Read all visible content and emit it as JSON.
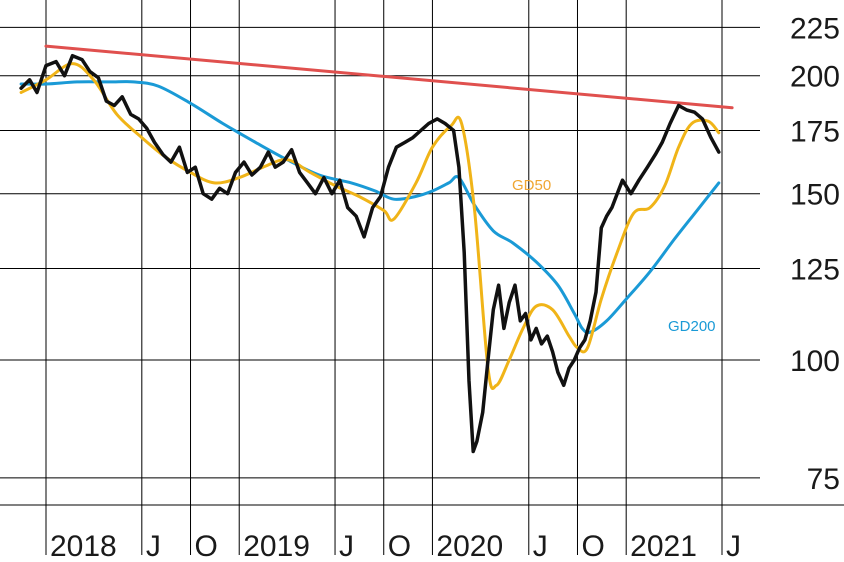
{
  "chart_data": {
    "type": "line",
    "title": "",
    "xlabel": "",
    "ylabel": "",
    "scale": "log",
    "ylim": [
      73,
      228
    ],
    "xlim": [
      "2018-01-01",
      "2021-07-31"
    ],
    "grid": true,
    "y_ticks": [
      75,
      100,
      125,
      150,
      175,
      200,
      225
    ],
    "x_ticks": [
      {
        "label": "2018",
        "date": "2018-01-01"
      },
      {
        "label": "J",
        "date": "2018-07-01"
      },
      {
        "label": "O",
        "date": "2018-10-01"
      },
      {
        "label": "2019",
        "date": "2019-01-01"
      },
      {
        "label": "J",
        "date": "2019-07-01"
      },
      {
        "label": "O",
        "date": "2019-10-01"
      },
      {
        "label": "2020",
        "date": "2020-01-01"
      },
      {
        "label": "J",
        "date": "2020-07-01"
      },
      {
        "label": "O",
        "date": "2020-10-01"
      },
      {
        "label": "2021",
        "date": "2021-01-01"
      },
      {
        "label": "J",
        "date": "2021-07-01"
      }
    ],
    "series": [
      {
        "name": "",
        "role": "price",
        "color": "#111111",
        "x": [
          "2017-11-15",
          "2017-12-01",
          "2017-12-15",
          "2018-01-01",
          "2018-01-20",
          "2018-02-05",
          "2018-02-20",
          "2018-03-10",
          "2018-03-25",
          "2018-04-10",
          "2018-04-25",
          "2018-05-10",
          "2018-05-25",
          "2018-06-10",
          "2018-06-25",
          "2018-07-10",
          "2018-07-25",
          "2018-08-10",
          "2018-08-25",
          "2018-09-10",
          "2018-09-25",
          "2018-10-10",
          "2018-10-25",
          "2018-11-10",
          "2018-11-25",
          "2018-12-10",
          "2018-12-25",
          "2019-01-10",
          "2019-01-25",
          "2019-02-10",
          "2019-02-25",
          "2019-03-10",
          "2019-03-25",
          "2019-04-10",
          "2019-04-25",
          "2019-05-10",
          "2019-05-25",
          "2019-06-10",
          "2019-06-25",
          "2019-07-10",
          "2019-07-25",
          "2019-08-10",
          "2019-08-25",
          "2019-09-10",
          "2019-09-25",
          "2019-10-10",
          "2019-10-25",
          "2019-11-10",
          "2019-11-25",
          "2019-12-10",
          "2019-12-25",
          "2020-01-10",
          "2020-01-25",
          "2020-02-10",
          "2020-02-20",
          "2020-03-01",
          "2020-03-10",
          "2020-03-18",
          "2020-03-25",
          "2020-04-05",
          "2020-04-15",
          "2020-04-25",
          "2020-05-05",
          "2020-05-15",
          "2020-05-25",
          "2020-06-05",
          "2020-06-15",
          "2020-06-25",
          "2020-07-05",
          "2020-07-15",
          "2020-07-25",
          "2020-08-05",
          "2020-08-15",
          "2020-08-25",
          "2020-09-05",
          "2020-09-15",
          "2020-09-25",
          "2020-10-05",
          "2020-10-15",
          "2020-10-25",
          "2020-11-05",
          "2020-11-15",
          "2020-11-25",
          "2020-12-05",
          "2020-12-15",
          "2020-12-25",
          "2021-01-10",
          "2021-01-25",
          "2021-02-10",
          "2021-02-25",
          "2021-03-10",
          "2021-03-25",
          "2021-04-10",
          "2021-04-25",
          "2021-05-10",
          "2021-05-25",
          "2021-06-10",
          "2021-06-25"
        ],
        "values": [
          194,
          198,
          192,
          205,
          207,
          200,
          210,
          208,
          202,
          199,
          188,
          186,
          190,
          182,
          180,
          176,
          170,
          165,
          162,
          168,
          158,
          160,
          150,
          148,
          152,
          150,
          158,
          162,
          157,
          160,
          166,
          160,
          162,
          167,
          158,
          154,
          150,
          156,
          150,
          155,
          145,
          142,
          135,
          145,
          149,
          160,
          168,
          170,
          172,
          175,
          178,
          180,
          178,
          175,
          160,
          130,
          95,
          80,
          82,
          88,
          100,
          113,
          120,
          108,
          115,
          120,
          110,
          112,
          105,
          108,
          104,
          106,
          102,
          97,
          94,
          98,
          100,
          103,
          105,
          110,
          118,
          138,
          142,
          145,
          150,
          155,
          150,
          155,
          160,
          165,
          170,
          178,
          186,
          184,
          183,
          180,
          172,
          166
        ]
      },
      {
        "name": "GD50",
        "role": "gd50",
        "color": "#f0b418",
        "x": [
          "2017-11-15",
          "2018-01-01",
          "2018-02-20",
          "2018-04-01",
          "2018-05-15",
          "2018-07-01",
          "2018-08-15",
          "2018-10-01",
          "2018-11-15",
          "2019-01-01",
          "2019-02-15",
          "2019-04-01",
          "2019-05-15",
          "2019-07-01",
          "2019-08-15",
          "2019-10-01",
          "2019-10-20",
          "2019-12-01",
          "2020-01-01",
          "2020-02-05",
          "2020-02-25",
          "2020-03-20",
          "2020-04-15",
          "2020-05-01",
          "2020-05-25",
          "2020-06-20",
          "2020-07-15",
          "2020-08-15",
          "2020-09-15",
          "2020-10-01",
          "2020-10-20",
          "2020-11-15",
          "2020-12-15",
          "2021-01-15",
          "2021-02-15",
          "2021-03-15",
          "2021-04-10",
          "2021-05-05",
          "2021-06-05",
          "2021-06-25"
        ],
        "values": [
          192,
          198,
          206,
          198,
          182,
          172,
          164,
          158,
          154,
          156,
          160,
          163,
          158,
          153,
          149,
          144,
          141,
          154,
          168,
          177,
          178,
          145,
          98,
          94,
          100,
          108,
          114,
          113,
          106,
          103,
          103,
          116,
          130,
          143,
          145,
          153,
          168,
          178,
          179,
          174
        ]
      },
      {
        "name": "GD200",
        "role": "gd200",
        "color": "#1a9ad6",
        "x": [
          "2017-11-15",
          "2018-01-01",
          "2018-03-01",
          "2018-05-01",
          "2018-06-15",
          "2018-08-01",
          "2018-10-01",
          "2018-12-01",
          "2019-02-01",
          "2019-04-01",
          "2019-06-01",
          "2019-08-01",
          "2019-09-15",
          "2019-10-20",
          "2019-12-01",
          "2020-01-01",
          "2020-02-01",
          "2020-02-20",
          "2020-03-20",
          "2020-04-25",
          "2020-06-01",
          "2020-07-15",
          "2020-08-25",
          "2020-09-25",
          "2020-10-10",
          "2020-10-25",
          "2020-11-25",
          "2021-01-01",
          "2021-02-15",
          "2021-04-01",
          "2021-05-15",
          "2021-06-25"
        ],
        "values": [
          196,
          196,
          197,
          197,
          197,
          195,
          187,
          178,
          170,
          163,
          157,
          154,
          151,
          148,
          149,
          151,
          154,
          156,
          146,
          137,
          133,
          127,
          120,
          112,
          108,
          107,
          110,
          116,
          124,
          134,
          144,
          154
        ]
      },
      {
        "name": "",
        "role": "trendline",
        "color": "#e0504e",
        "x": [
          "2018-01-01",
          "2021-07-20"
        ],
        "values": [
          215,
          185
        ]
      }
    ],
    "annotations": [
      {
        "text": "GD50",
        "color": "#f0a632"
      },
      {
        "text": "GD200",
        "color": "#1a9ad6"
      }
    ]
  }
}
